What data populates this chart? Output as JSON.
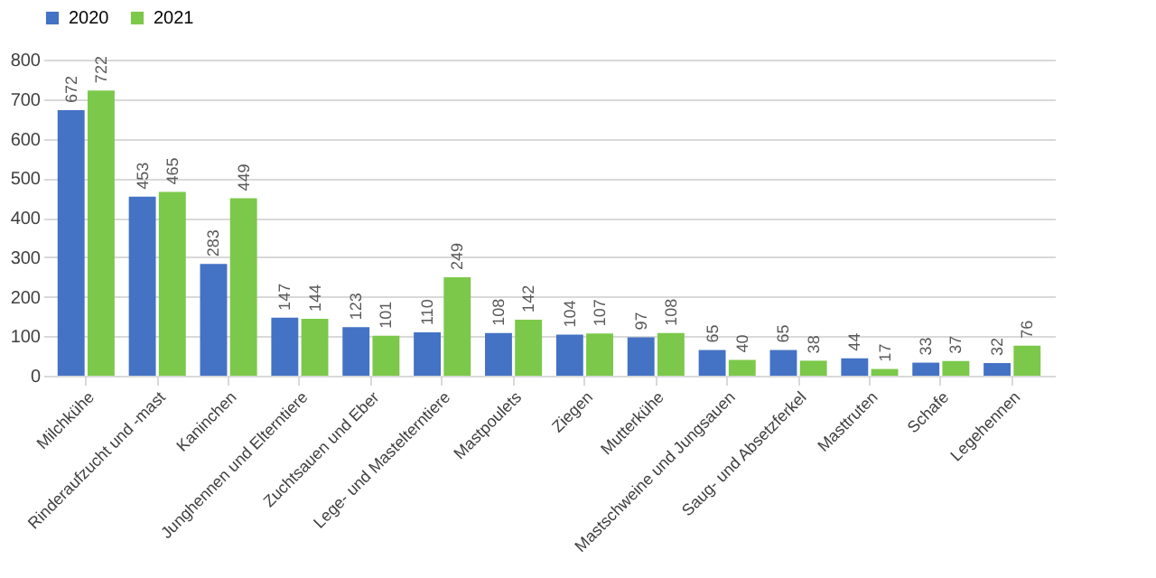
{
  "chart_data": {
    "type": "bar",
    "categories": [
      "Milchkühe",
      "Rinderaufzucht und -mast",
      "Kaninchen",
      "Junghennen und Elterntiere",
      "Zuchtsauen und Eber",
      "Lege- und Mastelterntiere",
      "Mastpoulets",
      "Ziegen",
      "Mutterkühe",
      "Mastschweine und Jungsauen",
      "Saug- und Absetzferkel",
      "Masttruten",
      "Schafe",
      "Legehennen"
    ],
    "series": [
      {
        "name": "2020",
        "color": "#4472c4",
        "values": [
          672,
          453,
          283,
          147,
          123,
          110,
          108,
          104,
          97,
          65,
          65,
          44,
          33,
          32
        ]
      },
      {
        "name": "2021",
        "color": "#7cc84a",
        "values": [
          722,
          465,
          449,
          144,
          101,
          249,
          142,
          107,
          108,
          40,
          38,
          17,
          37,
          76
        ]
      }
    ],
    "ylim": [
      0,
      800
    ],
    "yticks": [
      0,
      100,
      200,
      300,
      400,
      500,
      600,
      700,
      800
    ],
    "grid": "y",
    "legend": "top",
    "data_labels": true
  }
}
